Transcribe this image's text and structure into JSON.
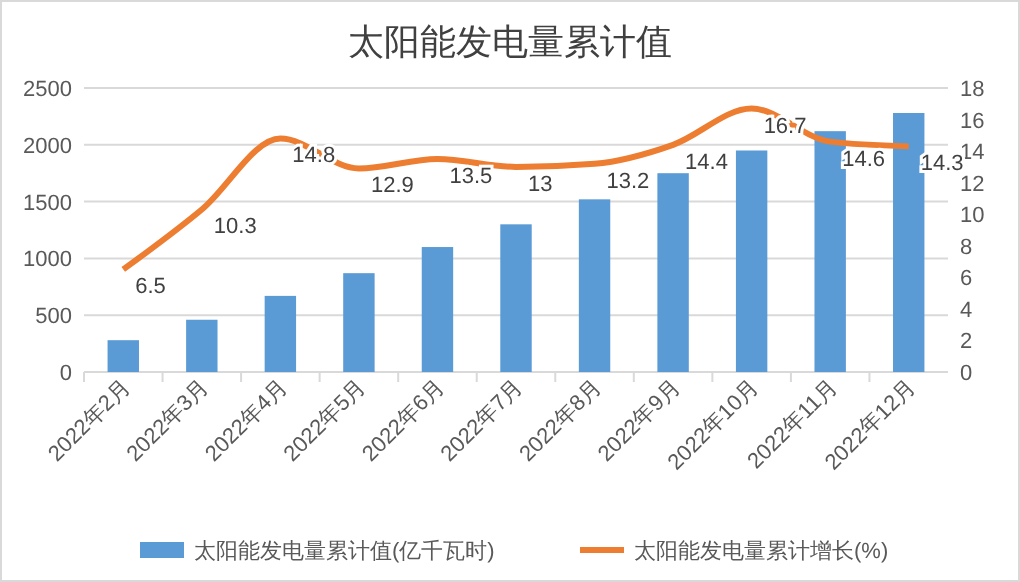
{
  "chart_data": {
    "type": "bar",
    "title": "太阳能发电量累计值",
    "categories": [
      "2022年2月",
      "2022年3月",
      "2022年4月",
      "2022年5月",
      "2022年6月",
      "2022年7月",
      "2022年8月",
      "2022年9月",
      "2022年10月",
      "2022年11月",
      "2022年12月"
    ],
    "series": [
      {
        "name": "太阳能发电量累计值(亿千瓦时)",
        "color": "#5b9bd5",
        "values": [
          280,
          460,
          670,
          870,
          1100,
          1300,
          1520,
          1750,
          1950,
          2120,
          2280
        ]
      },
      {
        "name": "太阳能发电量累计增长(%)",
        "type": "line",
        "axis": "y2",
        "color": "#ed7d31",
        "values": [
          6.5,
          10.3,
          14.8,
          12.9,
          13.5,
          13,
          13.2,
          14.4,
          16.7,
          14.6,
          14.3
        ],
        "value_labels": [
          "6.5",
          "10.3",
          "14.8",
          "12.9",
          "13.5",
          "13",
          "13.2",
          "14.4",
          "16.7",
          "14.6",
          "14.3"
        ]
      }
    ],
    "ylim": [
      0,
      2500
    ],
    "yticks": [
      0,
      500,
      1000,
      1500,
      2000,
      2500
    ],
    "y2lim": [
      0,
      18
    ],
    "y2ticks": [
      0,
      2,
      4,
      6,
      8,
      10,
      12,
      14,
      16,
      18
    ],
    "grid": "y",
    "legend": "bottom"
  }
}
